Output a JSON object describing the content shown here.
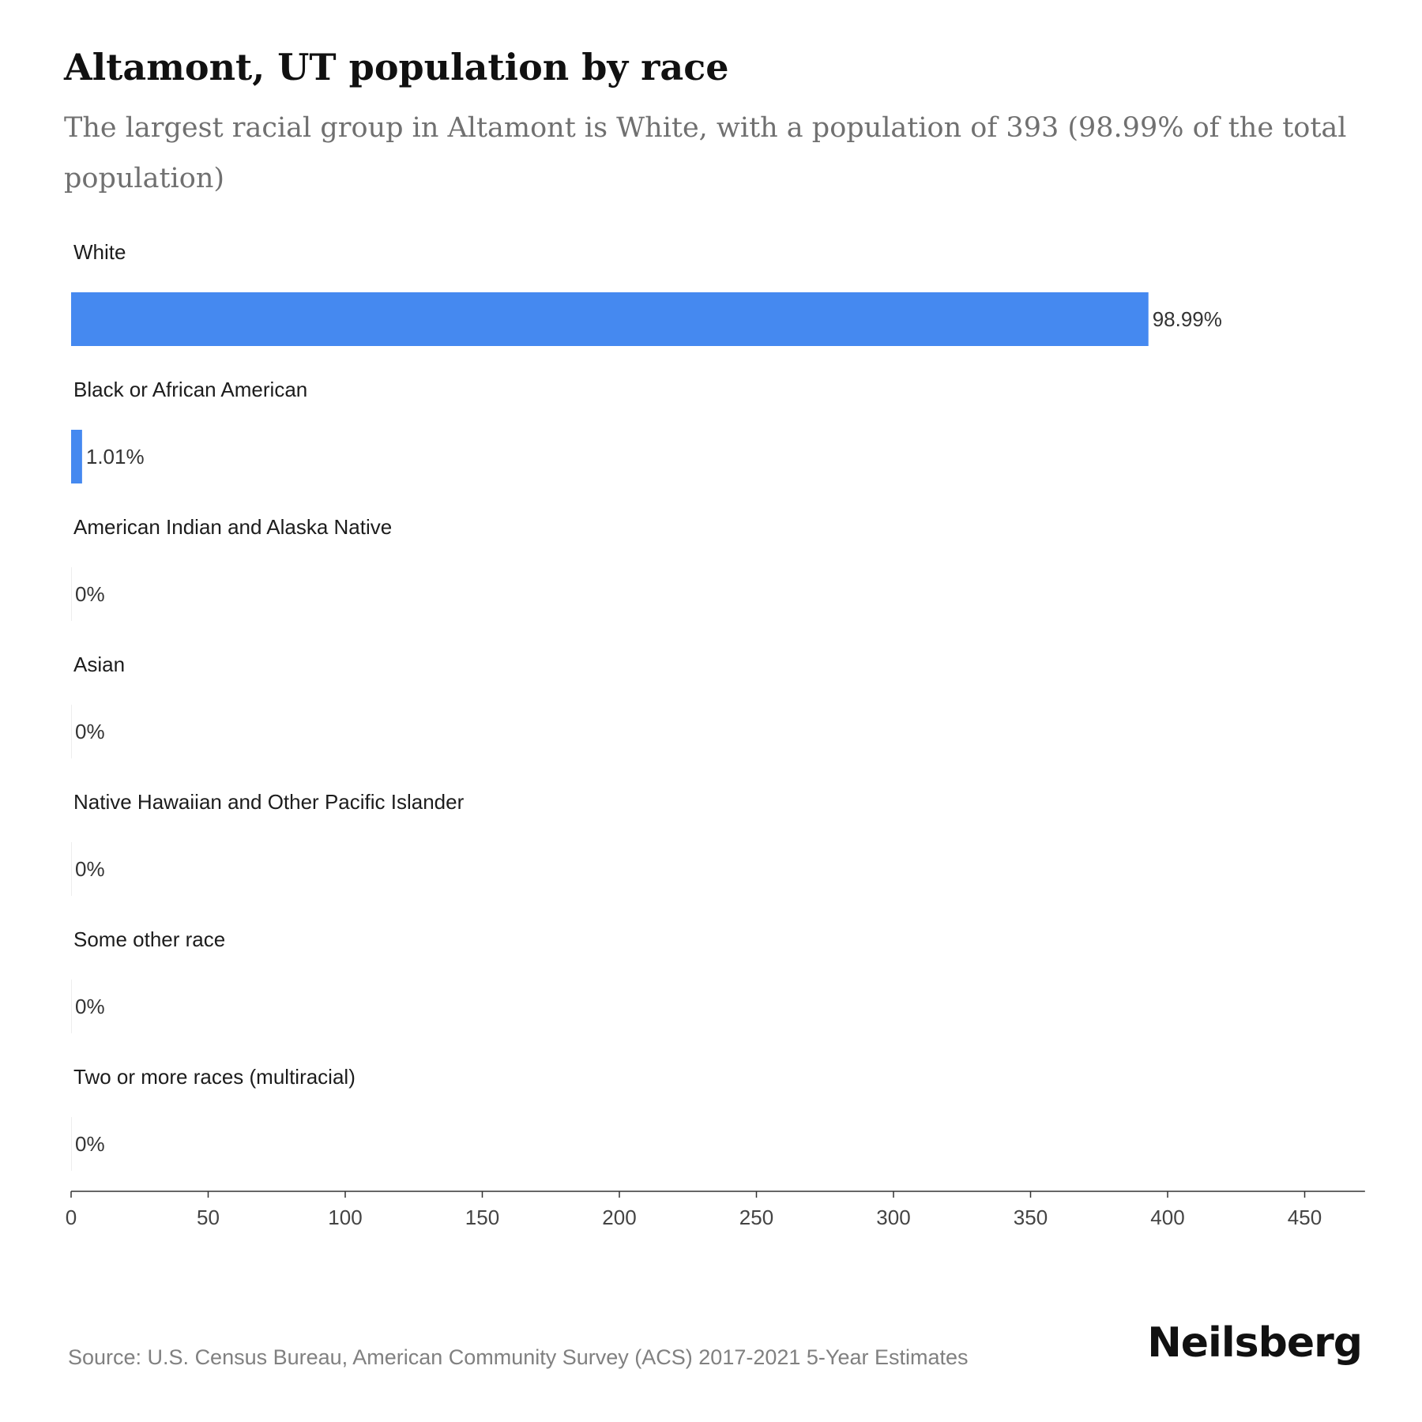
{
  "chart_data": {
    "type": "bar",
    "orientation": "horizontal",
    "title": "Altamont, UT population by race",
    "subtitle": "The largest racial group in Altamont is White, with a population of 393 (98.99% of the total population)",
    "categories": [
      "White",
      "Black or African American",
      "American Indian and Alaska Native",
      "Asian",
      "Native Hawaiian and Other Pacific Islander",
      "Some other race",
      "Two or more races (multiracial)"
    ],
    "values": [
      393,
      4,
      0,
      0,
      0,
      0,
      0
    ],
    "data_labels": [
      "98.99%",
      "1.01%",
      "0%",
      "0%",
      "0%",
      "0%",
      "0%"
    ],
    "x_ticks": [
      0,
      50,
      100,
      150,
      200,
      250,
      300,
      350,
      400,
      450
    ],
    "xlim": [
      0,
      472
    ],
    "grid": false,
    "legend": "none",
    "bar_color": "#4589f0"
  },
  "footer": {
    "source": "Source: U.S. Census Bureau, American Community Survey (ACS) 2017-2021 5-Year Estimates",
    "brand": "Neilsberg"
  }
}
